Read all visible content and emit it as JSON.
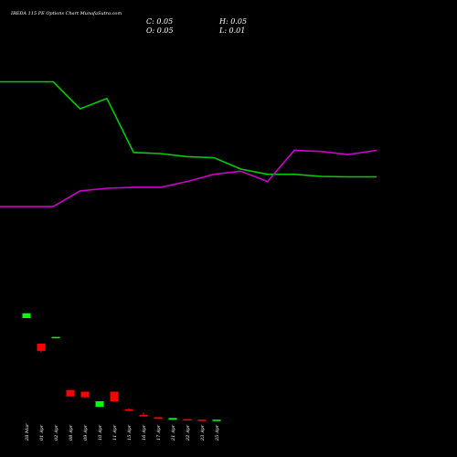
{
  "chart_data": {
    "type": "candlestick",
    "title": "IREDA 115 PE Options Chart MunafaSutra.com",
    "ohlc_header": {
      "c": "C: 0.05",
      "h": "H: 0.05",
      "o": "O: 0.05",
      "l": "L: 0.01"
    },
    "candles": [
      {
        "date": "28 Mar",
        "open": 6.7,
        "high": 6.7,
        "low": 6.4,
        "close": 6.4,
        "direction": "up"
      },
      {
        "date": "01 Apr",
        "open": 4.8,
        "high": 4.8,
        "low": 4.25,
        "close": 4.35,
        "direction": "down"
      },
      {
        "date": "02 Apr",
        "open": 5.2,
        "high": 5.22,
        "low": 5.2,
        "close": 5.22,
        "direction": "up"
      },
      {
        "date": "08 Apr",
        "open": 1.9,
        "high": 1.9,
        "low": 1.5,
        "close": 1.5,
        "direction": "down"
      },
      {
        "date": "09 Apr",
        "open": 1.8,
        "high": 1.8,
        "low": 1.4,
        "close": 1.45,
        "direction": "down"
      },
      {
        "date": "10 Apr",
        "open": 0.85,
        "high": 1.2,
        "low": 0.85,
        "close": 1.2,
        "direction": "up"
      },
      {
        "date": "11 Apr",
        "open": 1.8,
        "high": 1.8,
        "low": 1.15,
        "close": 1.2,
        "direction": "down"
      },
      {
        "date": "15 Apr",
        "open": 0.7,
        "high": 0.75,
        "low": 0.6,
        "close": 0.6,
        "direction": "down"
      },
      {
        "date": "16 Apr",
        "open": 0.35,
        "high": 0.5,
        "low": 0.25,
        "close": 0.25,
        "direction": "down"
      },
      {
        "date": "17 Apr",
        "open": 0.2,
        "high": 0.2,
        "low": 0.1,
        "close": 0.1,
        "direction": "down"
      },
      {
        "date": "21 Apr",
        "open": 0.05,
        "high": 0.15,
        "low": 0.05,
        "close": 0.15,
        "direction": "up"
      },
      {
        "date": "22 Apr",
        "open": 0.08,
        "high": 0.08,
        "low": 0.02,
        "close": 0.03,
        "direction": "down"
      },
      {
        "date": "23 Apr",
        "open": 0.05,
        "high": 0.05,
        "low": 0.0,
        "close": 0.02,
        "direction": "down"
      },
      {
        "date": "25 Apr",
        "open": 0.05,
        "high": 0.05,
        "low": 0.01,
        "close": 0.05,
        "direction": "up"
      }
    ],
    "price_ylim": [
      0,
      12
    ],
    "series": [
      {
        "color": "#00cc00",
        "x": [
          "28 Mar",
          "01 Apr",
          "02 Apr",
          "08 Apr",
          "09 Apr",
          "10 Apr",
          "11 Apr",
          "15 Apr",
          "16 Apr",
          "17 Apr",
          "21 Apr",
          "22 Apr",
          "23 Apr",
          "25 Apr"
        ],
        "values": [
          100,
          100,
          74,
          84,
          32,
          31,
          28,
          27,
          16,
          11,
          11,
          9,
          8.5,
          8.5
        ]
      },
      {
        "color": "#cc00cc",
        "x": [
          "28 Mar",
          "01 Apr",
          "02 Apr",
          "08 Apr",
          "09 Apr",
          "10 Apr",
          "11 Apr",
          "15 Apr",
          "16 Apr",
          "17 Apr",
          "21 Apr",
          "22 Apr",
          "23 Apr",
          "25 Apr"
        ],
        "values": [
          -20,
          -20,
          -5,
          -2.5,
          -1.5,
          -1.5,
          4,
          11,
          14,
          4,
          34,
          33,
          30,
          34
        ]
      }
    ],
    "indicator_ylim": [
      -50,
      126
    ],
    "grid": false,
    "legend": "none",
    "colors": {
      "background": "#000000",
      "up": "#00ff00",
      "down": "#ff0000",
      "text": "#ffffff"
    }
  }
}
